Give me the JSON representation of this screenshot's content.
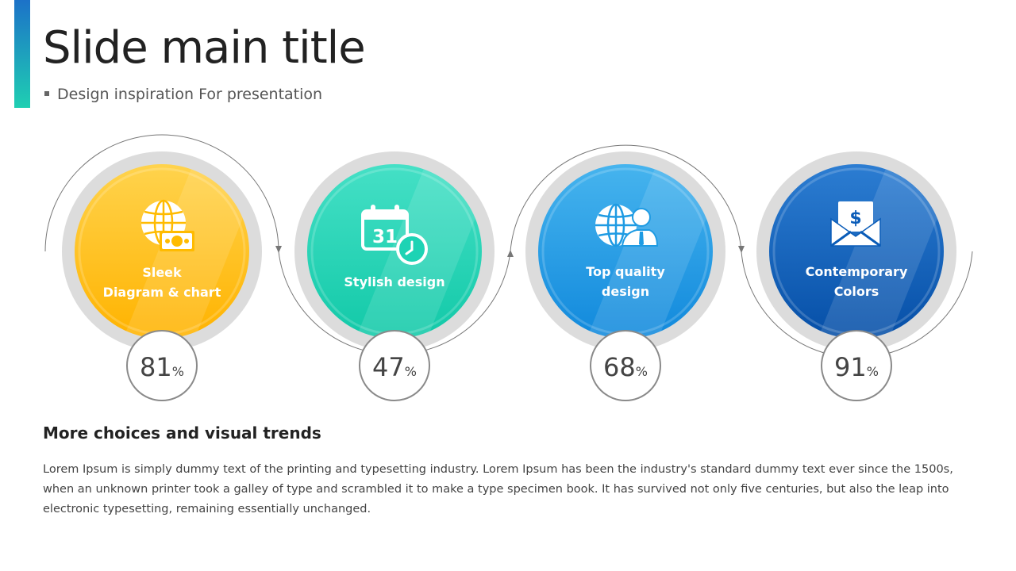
{
  "slide": {
    "title": "Slide main title",
    "subtitle": "Design inspiration For presentation"
  },
  "steps": [
    {
      "label": "Sleek\nDiagram & chart",
      "percent": "81",
      "unit": "%",
      "color": "#ffbb00",
      "icon": "globe-money-icon"
    },
    {
      "label": "Stylish design",
      "percent": "47",
      "unit": "%",
      "color": "#1dd3b4",
      "icon": "calendar-clock-icon"
    },
    {
      "label": "Top quality\ndesign",
      "percent": "68",
      "unit": "%",
      "color": "#1e9be3",
      "icon": "globe-businessman-icon"
    },
    {
      "label": "Contemporary\nColors",
      "percent": "91",
      "unit": "%",
      "color": "#0a5cb8",
      "icon": "envelope-dollar-icon"
    }
  ],
  "footer": {
    "heading": "More choices and visual trends",
    "body": "Lorem Ipsum is simply dummy text of the printing and typesetting industry. Lorem Ipsum has been the industry's standard dummy text ever since the 1500s, when an unknown printer took a galley of type and scrambled it to make a type specimen book. It has survived not only five centuries, but also the leap into electronic typesetting, remaining essentially unchanged."
  }
}
